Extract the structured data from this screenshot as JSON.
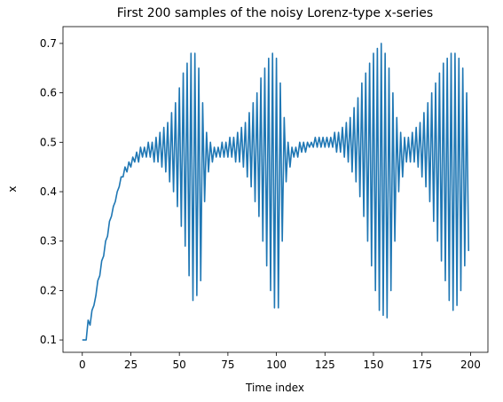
{
  "chart_data": {
    "type": "line",
    "title": "First 200 samples of the noisy Lorenz-type x-series",
    "xlabel": "Time index",
    "ylabel": "x",
    "x": [
      0,
      1,
      2,
      3,
      4,
      5,
      6,
      7,
      8,
      9,
      10,
      11,
      12,
      13,
      14,
      15,
      16,
      17,
      18,
      19,
      20,
      21,
      22,
      23,
      24,
      25,
      26,
      27,
      28,
      29,
      30,
      31,
      32,
      33,
      34,
      35,
      36,
      37,
      38,
      39,
      40,
      41,
      42,
      43,
      44,
      45,
      46,
      47,
      48,
      49,
      50,
      51,
      52,
      53,
      54,
      55,
      56,
      57,
      58,
      59,
      60,
      61,
      62,
      63,
      64,
      65,
      66,
      67,
      68,
      69,
      70,
      71,
      72,
      73,
      74,
      75,
      76,
      77,
      78,
      79,
      80,
      81,
      82,
      83,
      84,
      85,
      86,
      87,
      88,
      89,
      90,
      91,
      92,
      93,
      94,
      95,
      96,
      97,
      98,
      99,
      100,
      101,
      102,
      103,
      104,
      105,
      106,
      107,
      108,
      109,
      110,
      111,
      112,
      113,
      114,
      115,
      116,
      117,
      118,
      119,
      120,
      121,
      122,
      123,
      124,
      125,
      126,
      127,
      128,
      129,
      130,
      131,
      132,
      133,
      134,
      135,
      136,
      137,
      138,
      139,
      140,
      141,
      142,
      143,
      144,
      145,
      146,
      147,
      148,
      149,
      150,
      151,
      152,
      153,
      154,
      155,
      156,
      157,
      158,
      159,
      160,
      161,
      162,
      163,
      164,
      165,
      166,
      167,
      168,
      169,
      170,
      171,
      172,
      173,
      174,
      175,
      176,
      177,
      178,
      179,
      180,
      181,
      182,
      183,
      184,
      185,
      186,
      187,
      188,
      189,
      190,
      191,
      192,
      193,
      194,
      195,
      196,
      197,
      198,
      199
    ],
    "series": [
      {
        "name": "x",
        "color": "#1f77b4",
        "values": [
          0.1,
          0.1,
          0.1,
          0.14,
          0.13,
          0.16,
          0.17,
          0.19,
          0.22,
          0.23,
          0.26,
          0.27,
          0.3,
          0.31,
          0.34,
          0.35,
          0.37,
          0.38,
          0.4,
          0.41,
          0.43,
          0.43,
          0.45,
          0.44,
          0.46,
          0.45,
          0.47,
          0.46,
          0.48,
          0.46,
          0.49,
          0.47,
          0.49,
          0.47,
          0.5,
          0.47,
          0.5,
          0.46,
          0.51,
          0.46,
          0.52,
          0.45,
          0.53,
          0.44,
          0.54,
          0.42,
          0.56,
          0.4,
          0.58,
          0.37,
          0.61,
          0.33,
          0.64,
          0.29,
          0.66,
          0.23,
          0.68,
          0.18,
          0.68,
          0.19,
          0.65,
          0.22,
          0.58,
          0.38,
          0.52,
          0.44,
          0.5,
          0.46,
          0.49,
          0.47,
          0.49,
          0.47,
          0.5,
          0.47,
          0.5,
          0.47,
          0.51,
          0.47,
          0.51,
          0.46,
          0.52,
          0.46,
          0.53,
          0.45,
          0.54,
          0.43,
          0.56,
          0.41,
          0.58,
          0.38,
          0.6,
          0.35,
          0.63,
          0.3,
          0.65,
          0.25,
          0.67,
          0.2,
          0.68,
          0.165,
          0.67,
          0.165,
          0.62,
          0.3,
          0.55,
          0.42,
          0.5,
          0.45,
          0.49,
          0.47,
          0.49,
          0.47,
          0.5,
          0.48,
          0.5,
          0.48,
          0.5,
          0.49,
          0.5,
          0.49,
          0.51,
          0.49,
          0.51,
          0.49,
          0.51,
          0.49,
          0.51,
          0.49,
          0.51,
          0.49,
          0.52,
          0.48,
          0.52,
          0.48,
          0.53,
          0.47,
          0.54,
          0.46,
          0.55,
          0.44,
          0.57,
          0.42,
          0.59,
          0.39,
          0.62,
          0.35,
          0.64,
          0.3,
          0.66,
          0.25,
          0.68,
          0.2,
          0.69,
          0.16,
          0.7,
          0.15,
          0.68,
          0.145,
          0.65,
          0.2,
          0.6,
          0.3,
          0.55,
          0.4,
          0.52,
          0.43,
          0.51,
          0.46,
          0.51,
          0.46,
          0.52,
          0.46,
          0.53,
          0.45,
          0.54,
          0.43,
          0.56,
          0.41,
          0.58,
          0.38,
          0.6,
          0.34,
          0.62,
          0.3,
          0.64,
          0.26,
          0.66,
          0.22,
          0.67,
          0.18,
          0.68,
          0.16,
          0.68,
          0.17,
          0.67,
          0.2,
          0.65,
          0.25,
          0.6,
          0.28
        ]
      }
    ],
    "xlim": [
      -9.95,
      208.95
    ],
    "ylim": [
      0.075,
      0.734
    ],
    "xticks": [
      0,
      25,
      50,
      75,
      100,
      125,
      150,
      175,
      200
    ],
    "yticks": [
      0.1,
      0.2,
      0.3,
      0.4,
      0.5,
      0.6,
      0.7
    ]
  }
}
